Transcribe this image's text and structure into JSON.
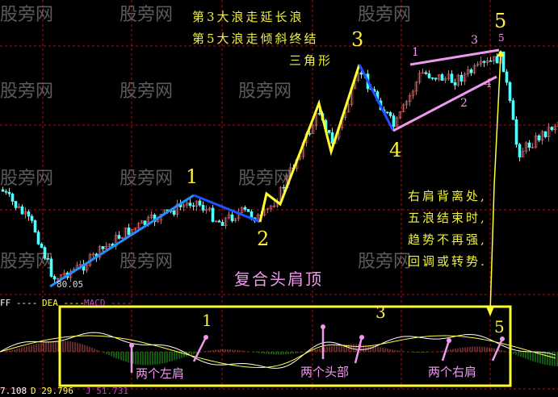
{
  "chart_data": {
    "type": "candlestick",
    "title": "复合头肩顶",
    "low_label": "80.05",
    "wave_labels": [
      "1",
      "2",
      "3",
      "4",
      "5"
    ],
    "triangle_labels": [
      "1",
      "2",
      "3",
      "4",
      "5"
    ],
    "notes_top": [
      "第3大浪走延长浪",
      "第5大浪走倾斜终结",
      "三角形"
    ],
    "notes_right": [
      "右肩背离处,",
      "五浪结束时,",
      "趋势不再强,",
      "回调或转势."
    ],
    "indicator": {
      "legend": [
        "FF ----",
        "DEA ----",
        "MACD ----"
      ],
      "readout": [
        "7.108",
        "D 29.796",
        "J 51.731"
      ],
      "labels": {
        "wave1": "1",
        "wave3": "3",
        "wave5": "5"
      },
      "annotations": [
        "两个左肩",
        "两个头部",
        "两个右肩"
      ]
    },
    "watermark": "股旁网",
    "colors": {
      "up": "#ff5050",
      "down": "#54ffff",
      "wave_blue": "#2090ff",
      "wave_yellow": "#ffff30",
      "triangle": "#ee99ee",
      "grid": "#a01818"
    }
  }
}
